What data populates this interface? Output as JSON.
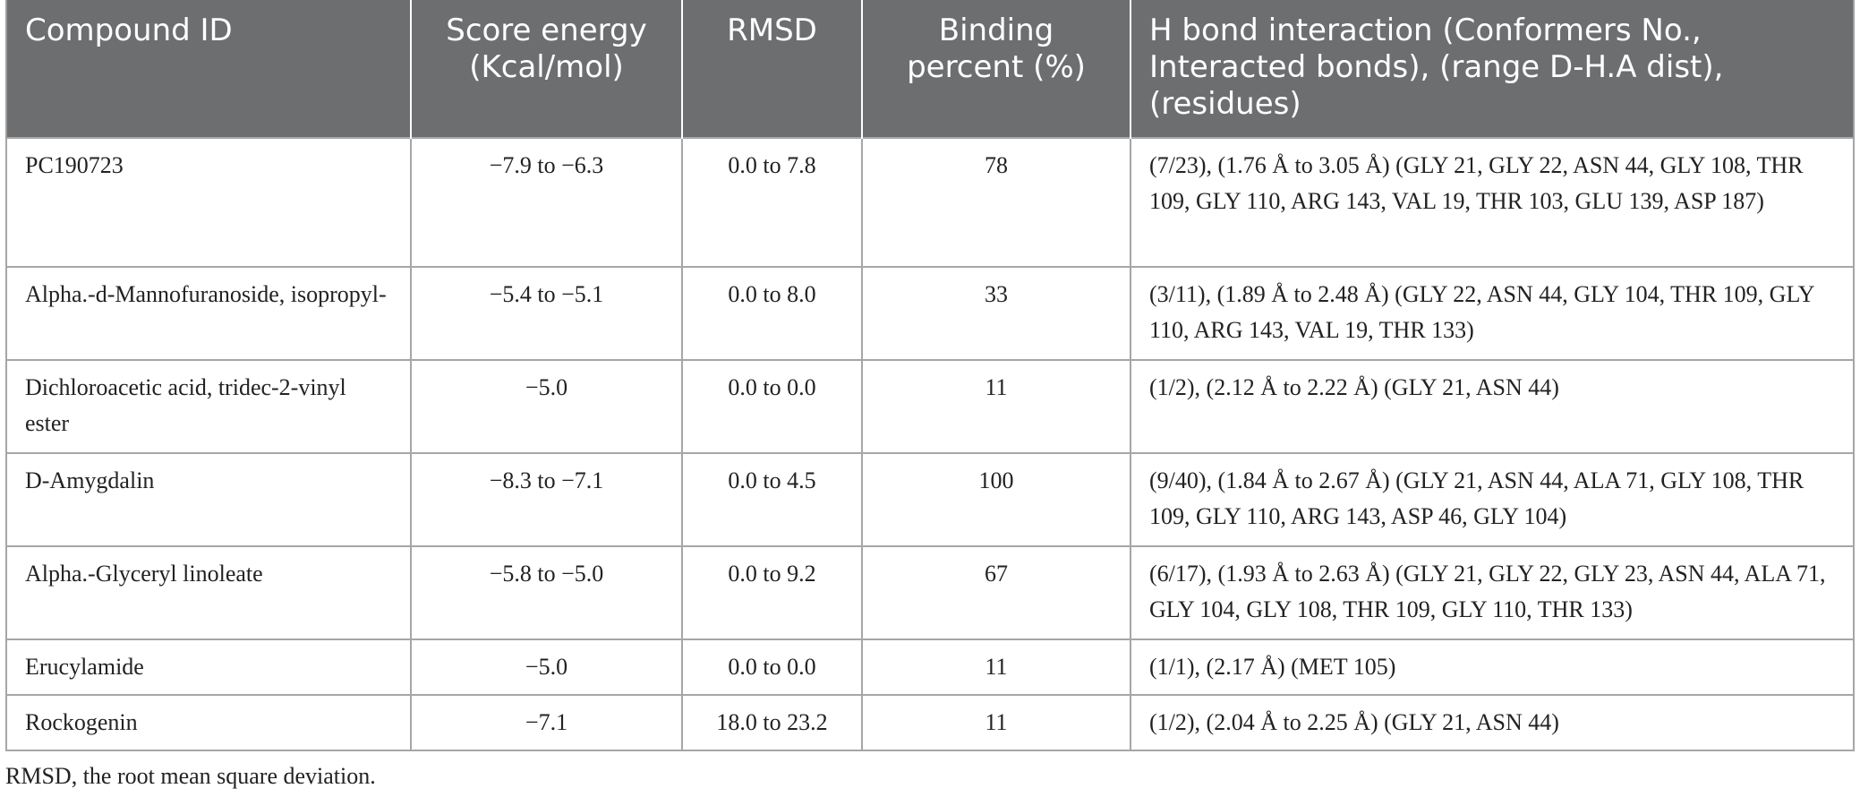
{
  "table": {
    "headers": [
      {
        "label": "Compound ID",
        "align": "left"
      },
      {
        "label": "Score energy (Kcal/mol)",
        "align": "center"
      },
      {
        "label": "RMSD",
        "align": "center"
      },
      {
        "label": "Binding percent (%)",
        "align": "center"
      },
      {
        "label": "H bond interaction (Conformers No., Interacted bonds), (range D-H.A dist), (residues)",
        "align": "left"
      }
    ],
    "rows": [
      {
        "compound": "PC190723",
        "score": "−7.9 to −6.3",
        "rmsd": "0.0 to 7.8",
        "binding": "78",
        "hbond": "(7/23), (1.76 Å to 3.05 Å) (GLY 21, GLY 22, ASN 44, GLY 108, THR 109, GLY 110, ARG 143, VAL 19, THR 103, GLU 139, ASP 187)"
      },
      {
        "compound": "Alpha.-d-Mannofuranoside, isopropyl-",
        "score": "−5.4 to −5.1",
        "rmsd": "0.0 to 8.0",
        "binding": "33",
        "hbond": "(3/11), (1.89 Å to 2.48 Å) (GLY 22, ASN 44, GLY 104, THR 109, GLY 110, ARG 143, VAL 19, THR 133)"
      },
      {
        "compound": "Dichloroacetic acid, tridec-2-vinyl ester",
        "score": "−5.0",
        "rmsd": "0.0 to 0.0",
        "binding": "11",
        "hbond": "(1/2), (2.12 Å to 2.22 Å) (GLY 21, ASN 44)"
      },
      {
        "compound": "D-Amygdalin",
        "score": "−8.3 to −7.1",
        "rmsd": "0.0 to 4.5",
        "binding": "100",
        "hbond": "(9/40), (1.84 Å to 2.67 Å) (GLY 21, ASN 44, ALA 71, GLY 108, THR 109, GLY 110, ARG 143, ASP 46, GLY 104)"
      },
      {
        "compound": "Alpha.-Glyceryl linoleate",
        "score": "−5.8 to −5.0",
        "rmsd": "0.0 to 9.2",
        "binding": "67",
        "hbond": "(6/17), (1.93 Å to 2.63 Å) (GLY 21, GLY 22, GLY 23, ASN 44, ALA 71, GLY 104, GLY 108, THR 109, GLY 110, THR 133)"
      },
      {
        "compound": "Erucylamide",
        "score": "−5.0",
        "rmsd": "0.0 to 0.0",
        "binding": "11",
        "hbond": "(1/1), (2.17 Å) (MET 105)"
      },
      {
        "compound": "Rockogenin",
        "score": "−7.1",
        "rmsd": "18.0 to 23.2",
        "binding": "11",
        "hbond": "(1/2), (2.04 Å to 2.25 Å) (GLY 21, ASN 44)"
      }
    ]
  },
  "footnote": "RMSD, the root mean square deviation.",
  "colors": {
    "header_bg": "#6d6e70",
    "header_text": "#ffffff",
    "border": "#a6a6a6"
  }
}
